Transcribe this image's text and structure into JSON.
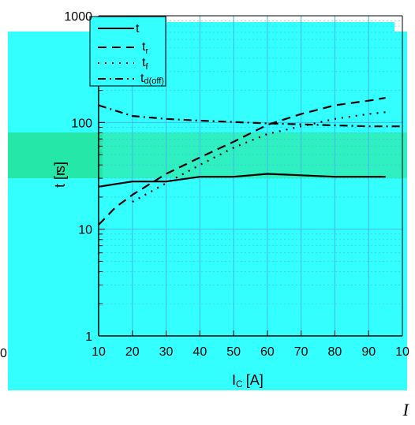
{
  "chart_data": {
    "type": "line",
    "title": "",
    "xlabel": "I C [A]",
    "xlabel_main": "I",
    "xlabel_sub": "C",
    "xlabel_unit": "[A]",
    "ylabel": "t [ns]",
    "ylabel_shown": "t [r",
    "ylabel_unit_shown": "s]",
    "x_scale": "linear",
    "y_scale": "log",
    "xlim": [
      10,
      100
    ],
    "ylim": [
      1,
      1000
    ],
    "grid": true,
    "legend_position": "top-left",
    "x_ticks": [
      "10",
      "20",
      "30",
      "40",
      "50",
      "60",
      "70",
      "80",
      "90",
      "10"
    ],
    "y_ticks": [
      "1",
      "10",
      "100",
      "1000"
    ],
    "series": [
      {
        "name": "t",
        "color": "#000000",
        "style": "solid",
        "x": [
          10,
          15,
          20,
          30,
          40,
          50,
          60,
          65,
          70,
          80,
          90,
          95
        ],
        "y": [
          25,
          26.5,
          28,
          28,
          31,
          31,
          33,
          32.5,
          32,
          31,
          31,
          31
        ]
      },
      {
        "name": "tr",
        "name_main": "t",
        "name_sub": "r",
        "color": "#000000",
        "style": "dashed",
        "x": [
          10,
          15,
          20,
          30,
          40,
          50,
          60,
          70,
          80,
          90,
          95
        ],
        "y": [
          11,
          16,
          21,
          33,
          47,
          66,
          95,
          120,
          145,
          160,
          170
        ]
      },
      {
        "name": "tf",
        "name_main": "t",
        "name_sub": "f",
        "color": "#000000",
        "style": "dotted",
        "x": [
          20,
          30,
          40,
          50,
          60,
          70,
          80,
          90,
          95
        ],
        "y": [
          18,
          27,
          40,
          58,
          78,
          92,
          108,
          120,
          125
        ]
      },
      {
        "name": "td(off)",
        "name_main": "t",
        "name_sub": "d(off)",
        "color": "#000000",
        "style": "dashdot",
        "x": [
          10,
          20,
          30,
          40,
          50,
          60,
          70,
          80,
          90,
          100
        ],
        "y": [
          145,
          115,
          108,
          104,
          101,
          98,
          96,
          94,
          92,
          92
        ]
      }
    ]
  },
  "corner_glyph": "I",
  "edge_glyph": "0",
  "colors": {
    "background": "#33ffff",
    "band": "#2ff0c0",
    "axis": "#000000",
    "grid": "#40b8e8"
  }
}
